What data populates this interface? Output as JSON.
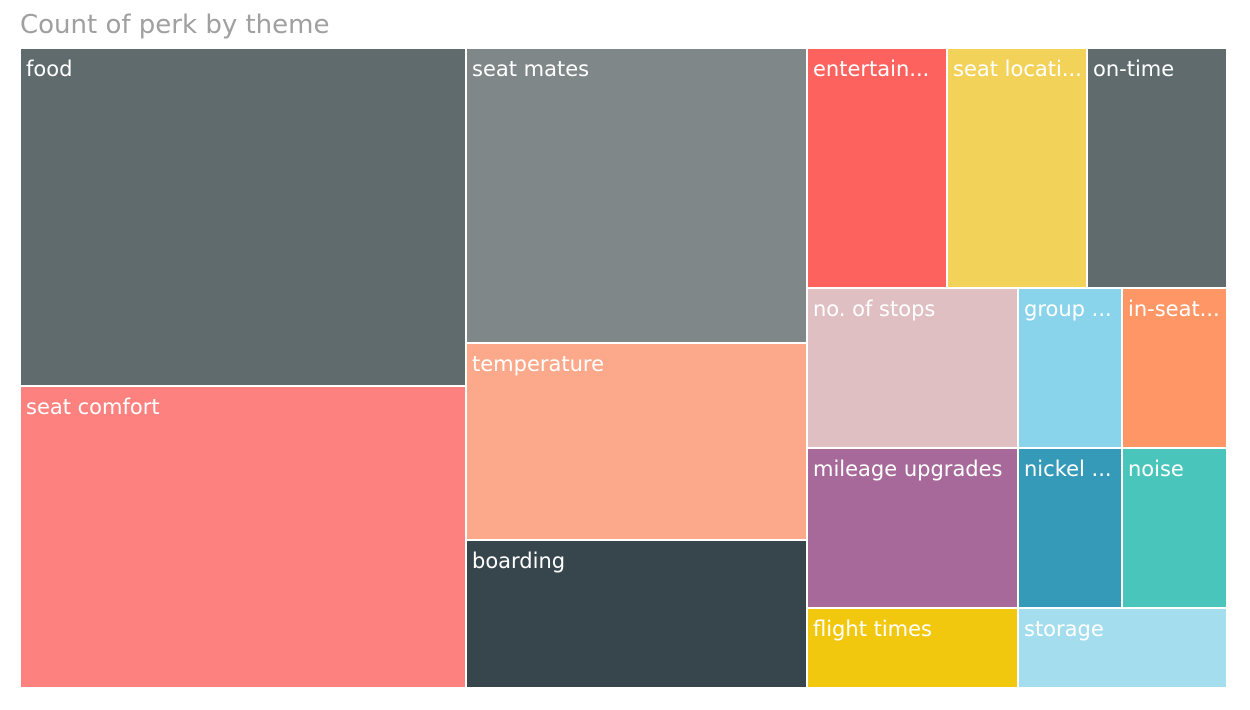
{
  "chart_data": {
    "type": "treemap",
    "title": "Count of perk by theme",
    "items": [
      {
        "label": "food",
        "value": 149,
        "color": "#5f6b6c"
      },
      {
        "label": "seat comfort",
        "value": 134,
        "color": "#fd817e"
      },
      {
        "label": "seat mates",
        "value": 100,
        "color": "#7f8788"
      },
      {
        "label": "temperature",
        "value": 67,
        "color": "#fca88a"
      },
      {
        "label": "boarding",
        "value": 50,
        "color": "#37464c"
      },
      {
        "label": "entertain...",
        "value": 33,
        "color": "#fd625e"
      },
      {
        "label": "seat locati...",
        "value": 33,
        "color": "#f3d25a"
      },
      {
        "label": "on-time",
        "value": 33,
        "color": "#5f6b6c"
      },
      {
        "label": "no. of stops",
        "value": 26,
        "color": "#dfbfc2"
      },
      {
        "label": "group ...",
        "value": 17,
        "color": "#8ad4eb"
      },
      {
        "label": "in-seat...",
        "value": 17,
        "color": "#fe9666"
      },
      {
        "label": "mileage upgrades",
        "value": 26,
        "color": "#a66999"
      },
      {
        "label": "nickel ...",
        "value": 17,
        "color": "#3599b8"
      },
      {
        "label": "noise",
        "value": 17,
        "color": "#4ac5bb"
      },
      {
        "label": "flight times",
        "value": 13,
        "color": "#f2c80f"
      },
      {
        "label": "storage",
        "value": 13,
        "color": "#a4ddee"
      }
    ]
  }
}
